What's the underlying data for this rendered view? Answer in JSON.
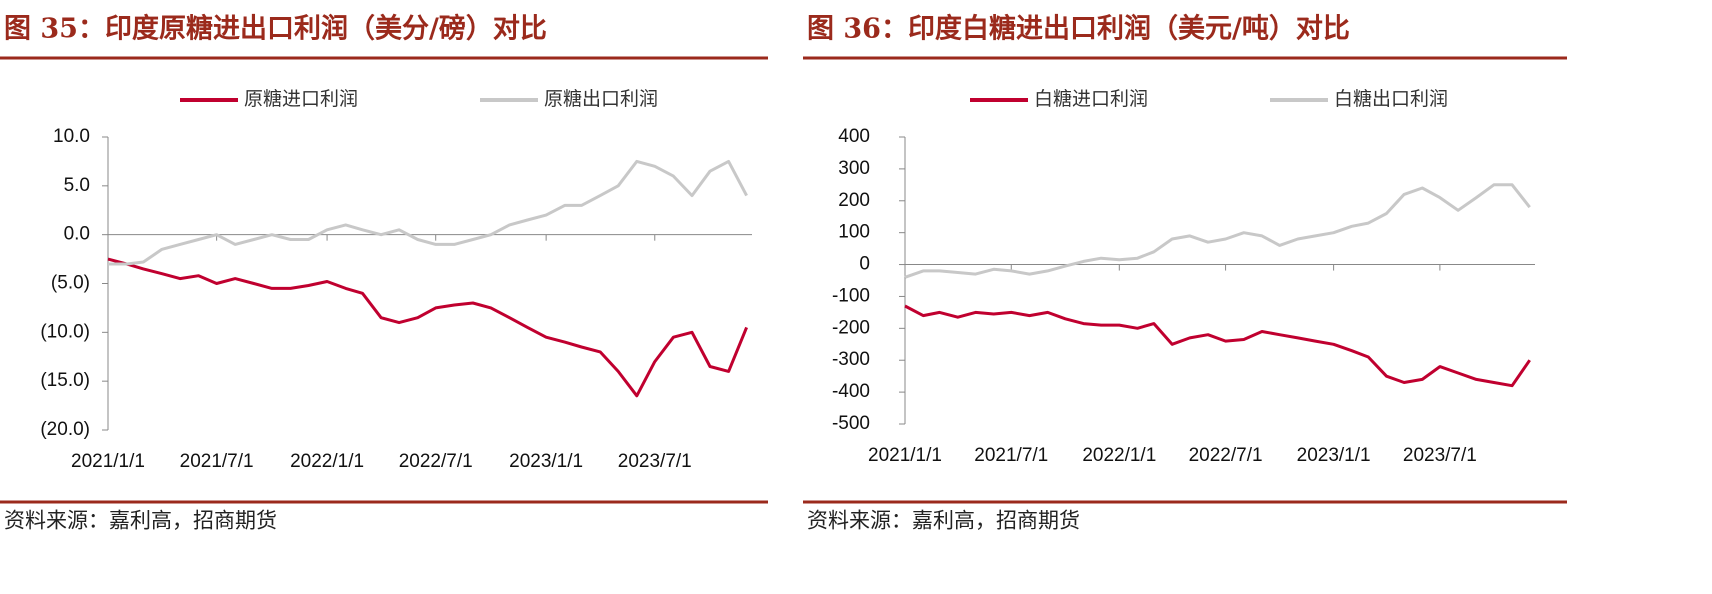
{
  "chart_data": [
    {
      "type": "line",
      "title": "图 35：印度原糖进出口利润（美分/磅）对比",
      "source": "资料来源：嘉利高，招商期货",
      "x": [
        "2021/1/1",
        "2021/2/1",
        "2021/3/1",
        "2021/4/1",
        "2021/5/1",
        "2021/6/1",
        "2021/7/1",
        "2021/8/1",
        "2021/9/1",
        "2021/10/1",
        "2021/11/1",
        "2021/12/1",
        "2022/1/1",
        "2022/2/1",
        "2022/3/1",
        "2022/4/1",
        "2022/5/1",
        "2022/6/1",
        "2022/7/1",
        "2022/8/1",
        "2022/9/1",
        "2022/10/1",
        "2022/11/1",
        "2022/12/1",
        "2023/1/1",
        "2023/2/1",
        "2023/3/1",
        "2023/4/1",
        "2023/5/1",
        "2023/6/1",
        "2023/7/1",
        "2023/8/1",
        "2023/9/1",
        "2023/10/1",
        "2023/11/1",
        "2023/12/1"
      ],
      "series": [
        {
          "name": "原糖进口利润",
          "color": "#c0002f",
          "values": [
            -2.5,
            -3,
            -3.5,
            -4,
            -4.5,
            -4.2,
            -5,
            -4.5,
            -5,
            -5.5,
            -5.5,
            -5.2,
            -4.8,
            -5.5,
            -6,
            -8.5,
            -9,
            -8.5,
            -7.5,
            -7.2,
            -7,
            -7.5,
            -8.5,
            -9.5,
            -10.5,
            -11,
            -11.5,
            -12,
            -14,
            -16.5,
            -13,
            -10.5,
            -10,
            -13.5,
            -14,
            -9.5
          ]
        },
        {
          "name": "原糖出口利润",
          "color": "#c8c8c8",
          "values": [
            -3,
            -3,
            -2.8,
            -1.5,
            -1,
            -0.5,
            0,
            -1,
            -0.5,
            0,
            -0.5,
            -0.5,
            0.5,
            1,
            0.5,
            0,
            0.5,
            -0.5,
            -1,
            -1,
            -0.5,
            0,
            1,
            1.5,
            2,
            3,
            3,
            4,
            5,
            7.5,
            7,
            6,
            4,
            6.5,
            7.5,
            4
          ]
        }
      ],
      "xlim": [
        "2021/1/1",
        "2023/12/10"
      ],
      "xticks": [
        "2021/1/1",
        "2021/7/1",
        "2022/1/1",
        "2022/7/1",
        "2023/1/1",
        "2023/7/1"
      ],
      "ylim": [
        -20,
        10
      ],
      "yticks": [
        {
          "value": -20,
          "label": "(20.0)"
        },
        {
          "value": -15,
          "label": "(15.0)"
        },
        {
          "value": -10,
          "label": "(10.0)"
        },
        {
          "value": -5,
          "label": "(5.0)"
        },
        {
          "value": 0,
          "label": "0.0"
        },
        {
          "value": 5,
          "label": "5.0"
        },
        {
          "value": 10,
          "label": "10.0"
        }
      ],
      "negative_tick_color": "#c0002f",
      "legend": "top"
    },
    {
      "type": "line",
      "title": "图 36：印度白糖进出口利润（美元/吨）对比",
      "source": "资料来源：嘉利高，招商期货",
      "x": [
        "2021/1/1",
        "2021/2/1",
        "2021/3/1",
        "2021/4/1",
        "2021/5/1",
        "2021/6/1",
        "2021/7/1",
        "2021/8/1",
        "2021/9/1",
        "2021/10/1",
        "2021/11/1",
        "2021/12/1",
        "2022/1/1",
        "2022/2/1",
        "2022/3/1",
        "2022/4/1",
        "2022/5/1",
        "2022/6/1",
        "2022/7/1",
        "2022/8/1",
        "2022/9/1",
        "2022/10/1",
        "2022/11/1",
        "2022/12/1",
        "2023/1/1",
        "2023/2/1",
        "2023/3/1",
        "2023/4/1",
        "2023/5/1",
        "2023/6/1",
        "2023/7/1",
        "2023/8/1",
        "2023/9/1",
        "2023/10/1",
        "2023/11/1",
        "2023/12/1"
      ],
      "series": [
        {
          "name": "白糖进口利润",
          "color": "#c0002f",
          "values": [
            -130,
            -160,
            -150,
            -165,
            -150,
            -155,
            -150,
            -160,
            -150,
            -170,
            -185,
            -190,
            -190,
            -200,
            -185,
            -250,
            -230,
            -220,
            -240,
            -235,
            -210,
            -220,
            -230,
            -240,
            -250,
            -270,
            -290,
            -350,
            -370,
            -360,
            -320,
            -340,
            -360,
            -370,
            -380,
            -300
          ]
        },
        {
          "name": "白糖出口利润",
          "color": "#c8c8c8",
          "values": [
            -40,
            -20,
            -20,
            -25,
            -30,
            -15,
            -20,
            -30,
            -20,
            -5,
            10,
            20,
            15,
            20,
            40,
            80,
            90,
            70,
            80,
            100,
            90,
            60,
            80,
            90,
            100,
            120,
            130,
            160,
            220,
            240,
            210,
            170,
            210,
            250,
            250,
            180
          ]
        }
      ],
      "xlim": [
        "2021/1/1",
        "2023/12/10"
      ],
      "xticks": [
        "2021/1/1",
        "2021/7/1",
        "2022/1/1",
        "2022/7/1",
        "2023/1/1",
        "2023/7/1"
      ],
      "ylim": [
        -500,
        400
      ],
      "yticks": [
        -500,
        -400,
        -300,
        -200,
        -100,
        0,
        100,
        200,
        300,
        400
      ],
      "legend": "top"
    }
  ]
}
